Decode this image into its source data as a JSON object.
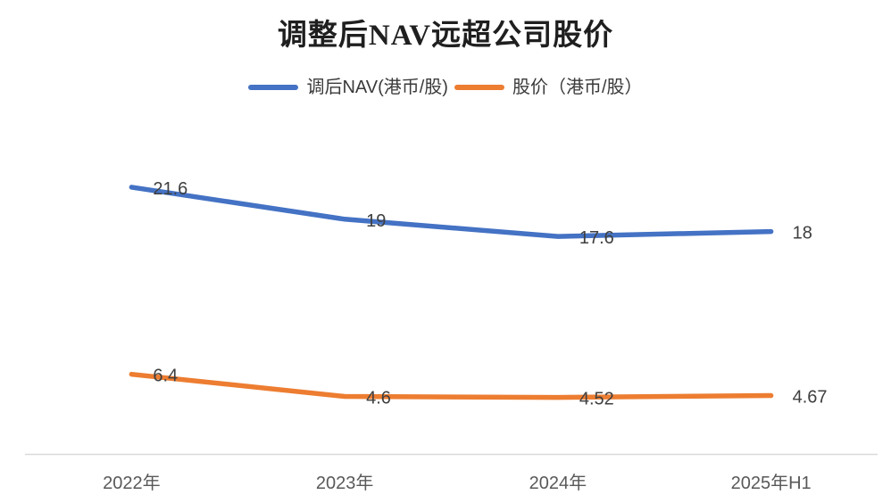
{
  "title": "调整后NAV远超公司股价",
  "legend": [
    {
      "label": "调后NAV(港币/股)",
      "color": "#4472C4"
    },
    {
      "label": "股价（港币/股）",
      "color": "#ED7D31"
    }
  ],
  "chart_data": {
    "type": "line",
    "title": "调整后NAV远超公司股价",
    "categories": [
      "2022年",
      "2023年",
      "2024年",
      "2025年H1"
    ],
    "series": [
      {
        "name": "调后NAV(港币/股)",
        "color": "#4472C4",
        "values": [
          21.6,
          19,
          17.6,
          18
        ],
        "labels": [
          "21.6",
          "19",
          "17.6",
          "18"
        ]
      },
      {
        "name": "股价（港币/股）",
        "color": "#ED7D31",
        "values": [
          6.4,
          4.6,
          4.52,
          4.67
        ],
        "labels": [
          "6.4",
          "4.6",
          "4.52",
          "4.67"
        ]
      }
    ],
    "xlabel": "",
    "ylabel": "",
    "ylim": [
      0,
      25
    ],
    "grid": false,
    "legend_position": "top",
    "axis_line_color": "#D9D9D9",
    "data_label_color": "#3F3F3F",
    "tick_label_color": "#595959"
  }
}
